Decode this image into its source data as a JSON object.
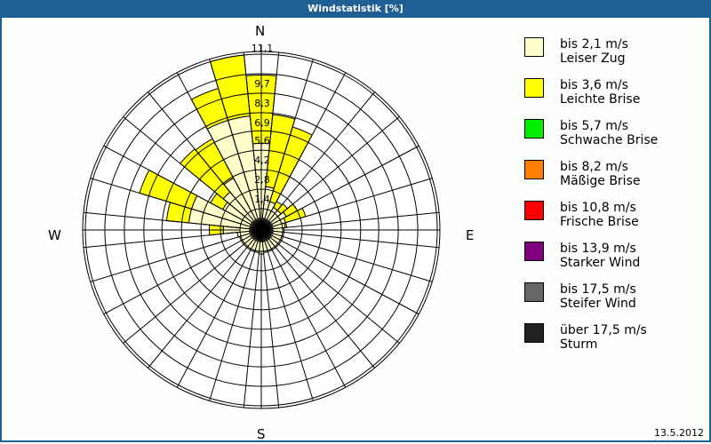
{
  "header": {
    "title": "Windstatistik [%]"
  },
  "footer": {
    "date": "13.5.2012"
  },
  "compass": {
    "n": "N",
    "e": "E",
    "s": "S",
    "w": "W"
  },
  "ring_labels": [
    "1,4",
    "2,8",
    "4,2",
    "5,6",
    "6,9",
    "8,3",
    "9,7",
    "11,1"
  ],
  "legend": [
    {
      "range": "bis 2,1 m/s",
      "name": "Leiser Zug",
      "color": "#ffffcc"
    },
    {
      "range": "bis 3,6 m/s",
      "name": "Leichte Brise",
      "color": "#ffff00"
    },
    {
      "range": "bis 5,7 m/s",
      "name": "Schwache Brise",
      "color": "#00ee00"
    },
    {
      "range": "bis 8,2 m/s",
      "name": "Mäßige Brise",
      "color": "#ff8000"
    },
    {
      "range": "bis 10,8 m/s",
      "name": "Frische Brise",
      "color": "#ff0000"
    },
    {
      "range": "bis 13,9 m/s",
      "name": "Starker Wind",
      "color": "#800080"
    },
    {
      "range": "bis 17,5 m/s",
      "name": "Steifer Wind",
      "color": "#666666"
    },
    {
      "range": "über 17,5 m/s",
      "name": "Sturm",
      "color": "#222222"
    }
  ],
  "chart_data": {
    "type": "wind-rose",
    "title": "Windstatistik [%]",
    "date": "13.5.2012",
    "unit": "%",
    "sector_count": 32,
    "sector_width_deg": 11.25,
    "radial_ticks": [
      1.4,
      2.8,
      4.2,
      5.6,
      6.9,
      8.3,
      9.7,
      11.1
    ],
    "rmax": 11.1,
    "legend_position": "right",
    "series_names": [
      "Leiser Zug (bis 2,1 m/s)",
      "Leichte Brise (bis 3,6 m/s)"
    ],
    "sectors": [
      {
        "deg": 0,
        "values": [
          4.7,
          4.9
        ]
      },
      {
        "deg": 11.25,
        "values": [
          1.6,
          5.2
        ]
      },
      {
        "deg": 22.5,
        "values": [
          0.6,
          5.6
        ]
      },
      {
        "deg": 33.75,
        "values": [
          0.3,
          0.5
        ]
      },
      {
        "deg": 45,
        "values": [
          0.3,
          0.6
        ]
      },
      {
        "deg": 56.25,
        "values": [
          0.5,
          0.9
        ]
      },
      {
        "deg": 67.5,
        "values": [
          0.3,
          1.5
        ]
      },
      {
        "deg": 78.75,
        "values": [
          0.2,
          0.1
        ]
      },
      {
        "deg": 90,
        "values": [
          0.1,
          0.0
        ]
      },
      {
        "deg": 101.25,
        "values": [
          0.1,
          0.0
        ]
      },
      {
        "deg": 112.5,
        "values": [
          0.1,
          0.0
        ]
      },
      {
        "deg": 123.75,
        "values": [
          0.1,
          0.0
        ]
      },
      {
        "deg": 135,
        "values": [
          0.1,
          0.0
        ]
      },
      {
        "deg": 146.25,
        "values": [
          0.1,
          0.0
        ]
      },
      {
        "deg": 157.5,
        "values": [
          0.1,
          0.0
        ]
      },
      {
        "deg": 168.75,
        "values": [
          0.1,
          0.0
        ]
      },
      {
        "deg": 180,
        "values": [
          0.2,
          0.0
        ]
      },
      {
        "deg": 191.25,
        "values": [
          0.1,
          0.0
        ]
      },
      {
        "deg": 202.5,
        "values": [
          0.1,
          0.0
        ]
      },
      {
        "deg": 213.75,
        "values": [
          0.1,
          0.0
        ]
      },
      {
        "deg": 225,
        "values": [
          0.1,
          0.0
        ]
      },
      {
        "deg": 236.25,
        "values": [
          0.1,
          0.0
        ]
      },
      {
        "deg": 247.5,
        "values": [
          0.1,
          0.0
        ]
      },
      {
        "deg": 258.75,
        "values": [
          0.2,
          0.0
        ]
      },
      {
        "deg": 270,
        "values": [
          1.2,
          1.0
        ]
      },
      {
        "deg": 281.25,
        "values": [
          3.7,
          1.6
        ]
      },
      {
        "deg": 292.5,
        "values": [
          3.7,
          3.9
        ]
      },
      {
        "deg": 303.75,
        "values": [
          1.6,
          1.0
        ]
      },
      {
        "deg": 315,
        "values": [
          2.0,
          4.0
        ]
      },
      {
        "deg": 326.25,
        "values": [
          2.7,
          3.2
        ]
      },
      {
        "deg": 337.5,
        "values": [
          6.7,
          2.4
        ]
      },
      {
        "deg": 348.75,
        "values": [
          6.7,
          4.4
        ]
      }
    ]
  }
}
